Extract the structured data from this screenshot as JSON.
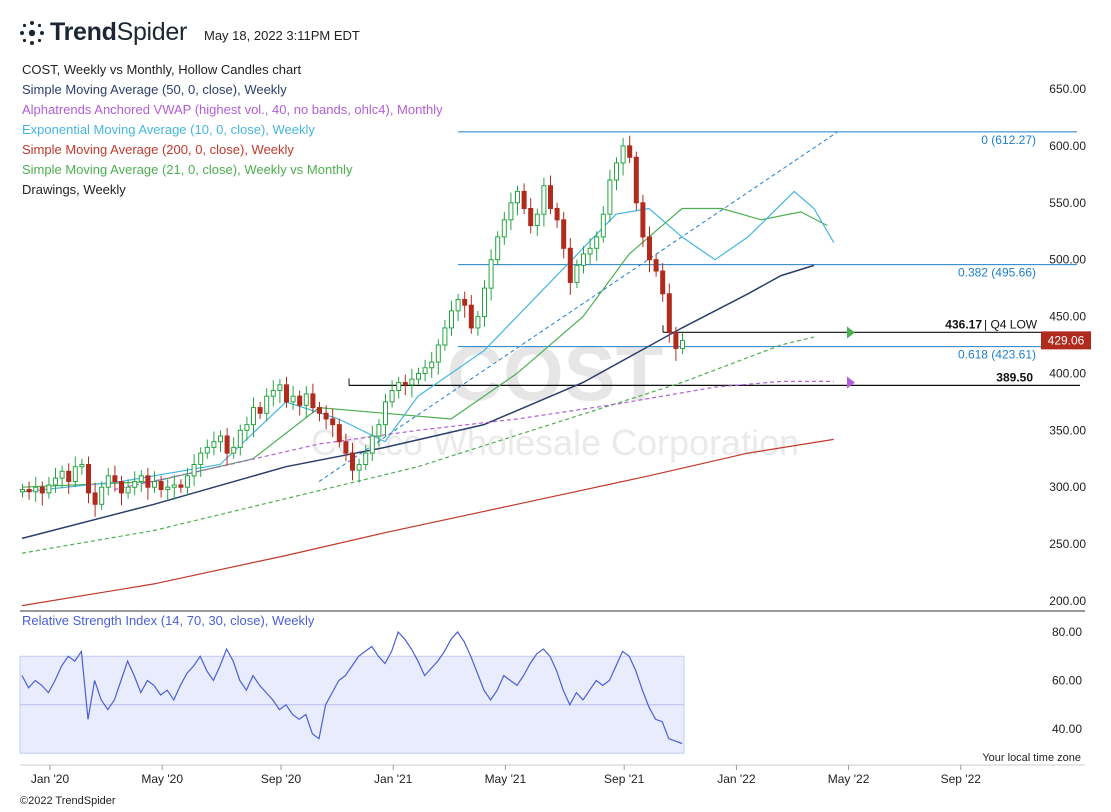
{
  "header": {
    "brand_bold": "Trend",
    "brand_light": "Spider",
    "timestamp": "May 18, 2022 3:11PM EDT"
  },
  "legend": [
    {
      "text": "COST, Weekly vs Monthly, Hollow Candles chart",
      "color": "#222222"
    },
    {
      "text": "Simple Moving Average (50, 0, close), Weekly",
      "color": "#2c3e6b"
    },
    {
      "text": "Alphatrends Anchored VWAP (highest vol., 40, no bands, ohlc4), Monthly",
      "color": "#b05fd6"
    },
    {
      "text": "Exponential Moving Average (10, 0, close), Weekly",
      "color": "#45b6e0"
    },
    {
      "text": "Simple Moving Average (200, 0, close), Weekly",
      "color": "#c0392b"
    },
    {
      "text": "Simple Moving Average (21, 0, close), Weekly vs Monthly",
      "color": "#4caf50"
    },
    {
      "text": "Drawings, Weekly",
      "color": "#222222"
    }
  ],
  "rsi_title": "Relative Strength Index (14, 70, 30, close), Weekly",
  "timezone_label": "Your local time zone",
  "copyright": "©2022 TrendSpider",
  "watermark": {
    "ticker": "COST",
    "name": "Costco Wholesale Corporation"
  },
  "chart_data": [
    {
      "type": "candlestick",
      "title": "COST, Weekly vs Monthly, Hollow Candles chart",
      "ylim": [
        190,
        670
      ],
      "y_ticks": [
        "650.00",
        "600.00",
        "550.00",
        "500.00",
        "450.00",
        "400.00",
        "350.00",
        "300.00",
        "250.00",
        "200.00"
      ],
      "x_labels": [
        "Jan '20",
        "May '20",
        "Sep '20",
        "Jan '21",
        "May '21",
        "Sep '21",
        "Jan '22",
        "May '22",
        "Sep '22"
      ],
      "x_label_weeks": [
        0,
        17,
        35,
        52,
        69,
        87,
        104,
        121,
        138
      ],
      "closes": [
        298,
        296,
        300,
        295,
        302,
        308,
        314,
        305,
        318,
        320,
        295,
        285,
        300,
        310,
        305,
        295,
        300,
        305,
        310,
        300,
        305,
        298,
        300,
        302,
        300,
        310,
        320,
        330,
        335,
        340,
        345,
        330,
        335,
        350,
        355,
        370,
        365,
        380,
        385,
        390,
        375,
        380,
        372,
        382,
        370,
        365,
        360,
        355,
        340,
        330,
        315,
        320,
        330,
        345,
        355,
        375,
        385,
        392,
        390,
        395,
        400,
        405,
        410,
        425,
        440,
        455,
        465,
        460,
        440,
        450,
        475,
        500,
        520,
        535,
        550,
        560,
        545,
        530,
        540,
        565,
        545,
        535,
        510,
        480,
        495,
        505,
        510,
        520,
        540,
        570,
        585,
        600,
        590,
        550,
        520,
        500,
        490,
        470,
        436,
        422,
        429
      ],
      "current_price": "429.06",
      "series": [
        {
          "name": "Simple Moving Average (50, 0, close), Weekly",
          "color": "#2c3e6b",
          "points": [
            [
              0,
              255
            ],
            [
              20,
              285
            ],
            [
              40,
              318
            ],
            [
              55,
              335
            ],
            [
              70,
              355
            ],
            [
              85,
              392
            ],
            [
              100,
              440
            ],
            [
              110,
              470
            ],
            [
              115,
              486
            ],
            [
              120,
              495
            ]
          ]
        },
        {
          "name": "Simple Moving Average (21, 0, close), Weekly vs Monthly",
          "color": "#4caf50",
          "points": [
            [
              0,
              300
            ],
            [
              20,
              305
            ],
            [
              35,
              325
            ],
            [
              45,
              370
            ],
            [
              55,
              365
            ],
            [
              65,
              360
            ],
            [
              75,
              400
            ],
            [
              85,
              450
            ],
            [
              92,
              505
            ],
            [
              100,
              545
            ],
            [
              106,
              545
            ],
            [
              112,
              535
            ],
            [
              118,
              542
            ],
            [
              122,
              530
            ]
          ]
        },
        {
          "name": "Monthly SMA (dashed)",
          "color": "#4caf50",
          "dashed": true,
          "points": [
            [
              0,
              242
            ],
            [
              20,
              262
            ],
            [
              40,
              290
            ],
            [
              60,
              318
            ],
            [
              80,
              355
            ],
            [
              100,
              392
            ],
            [
              115,
              425
            ],
            [
              120,
              432
            ]
          ]
        },
        {
          "name": "Exponential Moving Average (10, 0, close), Weekly",
          "color": "#45b6e0",
          "points": [
            [
              0,
              296
            ],
            [
              15,
              305
            ],
            [
              30,
              320
            ],
            [
              40,
              375
            ],
            [
              48,
              360
            ],
            [
              55,
              340
            ],
            [
              60,
              380
            ],
            [
              70,
              420
            ],
            [
              80,
              480
            ],
            [
              90,
              540
            ],
            [
              95,
              545
            ],
            [
              100,
              520
            ],
            [
              105,
              500
            ],
            [
              110,
              520
            ],
            [
              117,
              560
            ],
            [
              120,
              545
            ],
            [
              123,
              515
            ]
          ]
        },
        {
          "name": "Simple Moving Average (200, 0, close), Weekly",
          "color": "#c0392b",
          "points": [
            [
              0,
              196
            ],
            [
              20,
              215
            ],
            [
              40,
              240
            ],
            [
              55,
              260
            ],
            [
              75,
              285
            ],
            [
              95,
              310
            ],
            [
              110,
              330
            ],
            [
              123,
              342
            ]
          ]
        },
        {
          "name": "Alphatrends Anchored VWAP (highest vol., 40, no bands, ohlc4), Monthly",
          "color": "#b05fd6",
          "dashed": true,
          "points": [
            [
              14,
              298
            ],
            [
              30,
              318
            ],
            [
              45,
              338
            ],
            [
              60,
              350
            ],
            [
              75,
              360
            ],
            [
              90,
              373
            ],
            [
              105,
              388
            ],
            [
              115,
              393
            ],
            [
              123,
              393
            ]
          ]
        }
      ],
      "levels": [
        {
          "label": "0 (612.27)",
          "value": 612.27,
          "color": "#1f7fc8"
        },
        {
          "label": "0.382 (495.66)",
          "value": 495.66,
          "color": "#1f7fc8"
        },
        {
          "label": "0.618 (423.61)",
          "value": 423.61,
          "color": "#1f7fc8"
        },
        {
          "label": "436.17",
          "suffix": "| Q4 LOW",
          "value": 436.17,
          "color": "#111111"
        },
        {
          "label": "389.50",
          "value": 389.5,
          "color": "#111111"
        }
      ]
    },
    {
      "type": "line",
      "title": "Relative Strength Index (14, 70, 30, close), Weekly",
      "ylim": [
        25,
        90
      ],
      "y_ticks": [
        "80.00",
        "60.00",
        "40.00"
      ],
      "band": [
        30,
        70
      ],
      "midline": 50,
      "values": [
        62,
        57,
        60,
        58,
        55,
        60,
        66,
        70,
        68,
        72,
        44,
        60,
        52,
        48,
        52,
        60,
        68,
        62,
        55,
        60,
        58,
        54,
        56,
        52,
        58,
        63,
        66,
        70,
        64,
        60,
        66,
        73,
        68,
        60,
        56,
        62,
        58,
        55,
        52,
        48,
        50,
        46,
        44,
        46,
        38,
        36,
        50,
        55,
        60,
        62,
        66,
        70,
        72,
        74,
        70,
        67,
        72,
        80,
        77,
        73,
        68,
        62,
        65,
        68,
        72,
        77,
        80,
        76,
        70,
        63,
        56,
        52,
        56,
        62,
        60,
        58,
        62,
        67,
        71,
        73,
        70,
        64,
        56,
        50,
        55,
        52,
        56,
        60,
        58,
        60,
        66,
        72,
        70,
        64,
        56,
        49,
        44,
        43,
        36,
        35,
        34
      ]
    }
  ]
}
